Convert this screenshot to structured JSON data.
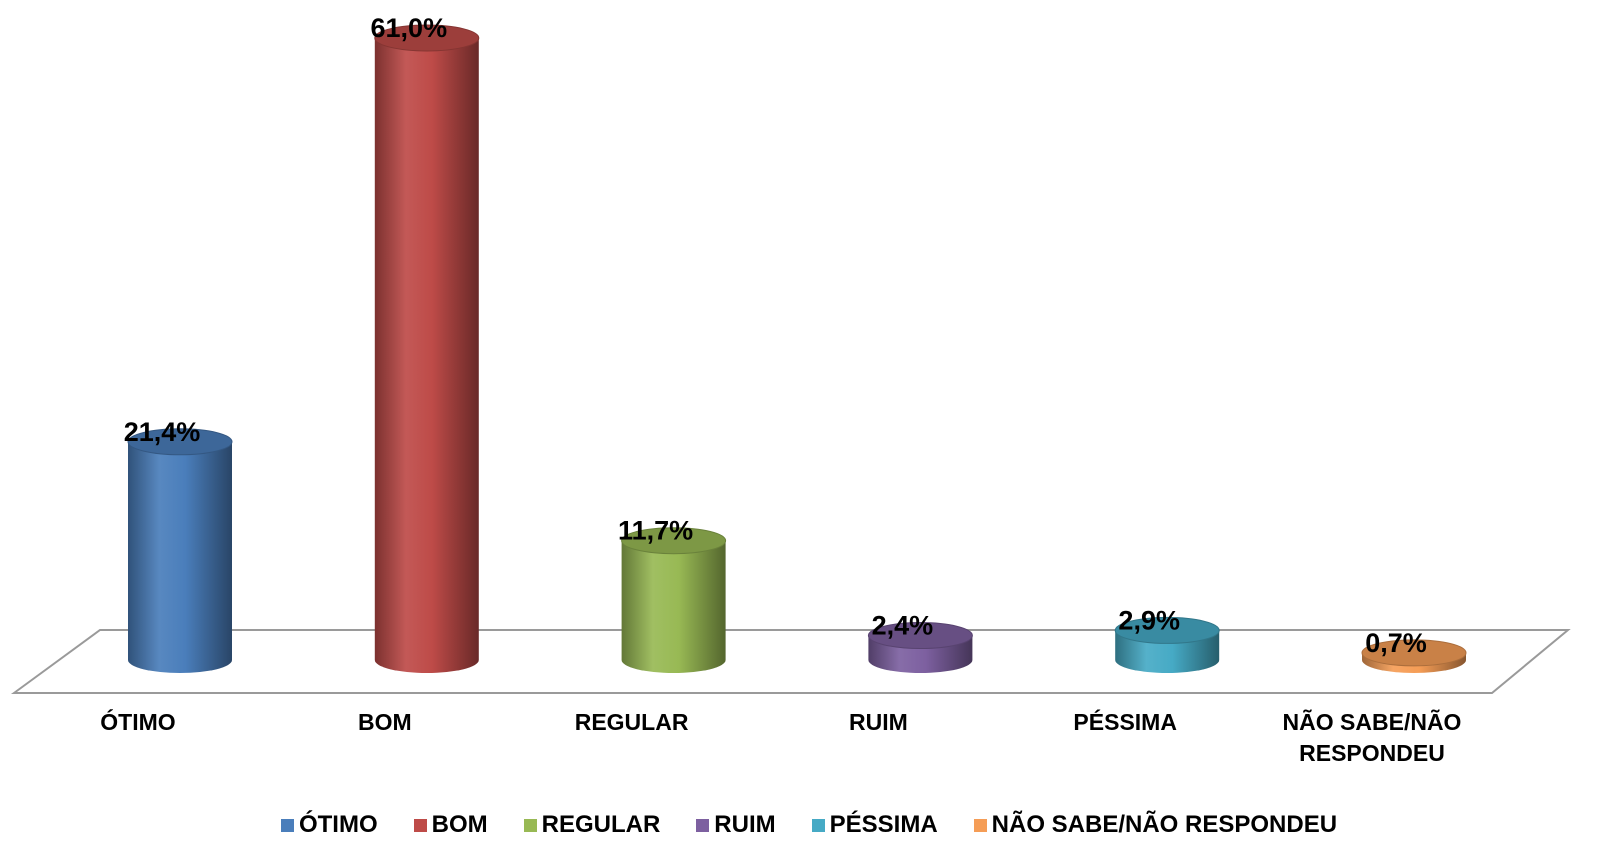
{
  "chart_data": {
    "type": "bar",
    "title": "",
    "xlabel": "",
    "ylabel": "",
    "ylim": [
      0,
      61
    ],
    "grid": false,
    "legend_position": "bottom",
    "categories": [
      "ÓTIMO",
      "BOM",
      "REGULAR",
      "RUIM",
      "PÉSSIMA",
      "NÃO SABE/NÃO RESPONDEU"
    ],
    "category_label_lines": [
      [
        "ÓTIMO"
      ],
      [
        "BOM"
      ],
      [
        "REGULAR"
      ],
      [
        "RUIM"
      ],
      [
        "PÉSSIMA"
      ],
      [
        "NÃO SABE/NÃO",
        "RESPONDEU"
      ]
    ],
    "values": [
      21.4,
      61.0,
      11.7,
      2.4,
      2.9,
      0.7
    ],
    "data_labels": [
      "21,4%",
      "61,0%",
      "11,7%",
      "2,4%",
      "2,9%",
      "0,7%"
    ],
    "colors": [
      "#4a7ebb",
      "#be4b48",
      "#98b954",
      "#7d60a0",
      "#46aac5",
      "#f59d56"
    ],
    "legend": [
      "ÓTIMO",
      "BOM",
      "REGULAR",
      "RUIM",
      "PÉSSIMA",
      "NÃO SABE/NÃO RESPONDEU"
    ]
  }
}
